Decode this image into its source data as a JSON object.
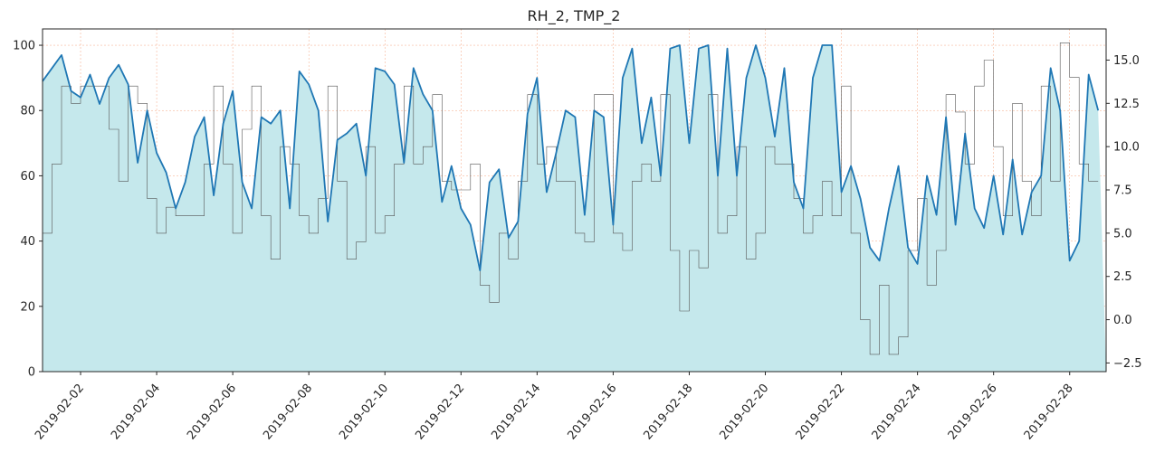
{
  "chart_data": {
    "type": "line",
    "title": "RH_2, TMP_2",
    "x_start": "2019-02-01",
    "x_end": "2019-02-28",
    "x_tick_labels": [
      "2019-02-02",
      "2019-02-04",
      "2019-02-06",
      "2019-02-08",
      "2019-02-10",
      "2019-02-12",
      "2019-02-14",
      "2019-02-16",
      "2019-02-18",
      "2019-02-20",
      "2019-02-22",
      "2019-02-24",
      "2019-02-26",
      "2019-02-28"
    ],
    "ylim_left": [
      0,
      105
    ],
    "ylim_right": [
      -3,
      16.8
    ],
    "y_left_ticks": [
      "0",
      "20",
      "40",
      "60",
      "80",
      "100"
    ],
    "y_right_ticks": [
      "−2.5",
      "0.0",
      "2.5",
      "5.0",
      "7.5",
      "10.0",
      "12.5",
      "15.0"
    ],
    "grid": true,
    "colors": {
      "rh_line": "#1f77b4",
      "rh_fill": "#c5e8ec",
      "tmp_line": "#555555",
      "grid": "#f4a582"
    },
    "series": [
      {
        "name": "RH_2",
        "axis": "left",
        "style": "line-with-area",
        "points": [
          [
            "2019-02-01 00:00",
            89
          ],
          [
            "2019-02-01 06:00",
            93
          ],
          [
            "2019-02-01 12:00",
            97
          ],
          [
            "2019-02-01 18:00",
            86
          ],
          [
            "2019-02-02 00:00",
            84
          ],
          [
            "2019-02-02 06:00",
            91
          ],
          [
            "2019-02-02 12:00",
            82
          ],
          [
            "2019-02-02 18:00",
            90
          ],
          [
            "2019-02-03 00:00",
            94
          ],
          [
            "2019-02-03 06:00",
            88
          ],
          [
            "2019-02-03 12:00",
            64
          ],
          [
            "2019-02-03 18:00",
            80
          ],
          [
            "2019-02-04 00:00",
            67
          ],
          [
            "2019-02-04 06:00",
            61
          ],
          [
            "2019-02-04 12:00",
            50
          ],
          [
            "2019-02-04 18:00",
            58
          ],
          [
            "2019-02-05 00:00",
            72
          ],
          [
            "2019-02-05 06:00",
            78
          ],
          [
            "2019-02-05 12:00",
            54
          ],
          [
            "2019-02-05 18:00",
            76
          ],
          [
            "2019-02-06 00:00",
            86
          ],
          [
            "2019-02-06 06:00",
            58
          ],
          [
            "2019-02-06 12:00",
            50
          ],
          [
            "2019-02-06 18:00",
            78
          ],
          [
            "2019-02-07 00:00",
            76
          ],
          [
            "2019-02-07 06:00",
            80
          ],
          [
            "2019-02-07 12:00",
            50
          ],
          [
            "2019-02-07 18:00",
            92
          ],
          [
            "2019-02-08 00:00",
            88
          ],
          [
            "2019-02-08 06:00",
            80
          ],
          [
            "2019-02-08 12:00",
            46
          ],
          [
            "2019-02-08 18:00",
            71
          ],
          [
            "2019-02-09 00:00",
            73
          ],
          [
            "2019-02-09 06:00",
            76
          ],
          [
            "2019-02-09 12:00",
            60
          ],
          [
            "2019-02-09 18:00",
            93
          ],
          [
            "2019-02-10 00:00",
            92
          ],
          [
            "2019-02-10 06:00",
            88
          ],
          [
            "2019-02-10 12:00",
            64
          ],
          [
            "2019-02-10 18:00",
            93
          ],
          [
            "2019-02-11 00:00",
            85
          ],
          [
            "2019-02-11 06:00",
            80
          ],
          [
            "2019-02-11 12:00",
            52
          ],
          [
            "2019-02-11 18:00",
            63
          ],
          [
            "2019-02-12 00:00",
            50
          ],
          [
            "2019-02-12 06:00",
            45
          ],
          [
            "2019-02-12 12:00",
            31
          ],
          [
            "2019-02-12 18:00",
            58
          ],
          [
            "2019-02-13 00:00",
            62
          ],
          [
            "2019-02-13 06:00",
            41
          ],
          [
            "2019-02-13 12:00",
            46
          ],
          [
            "2019-02-13 18:00",
            79
          ],
          [
            "2019-02-14 00:00",
            90
          ],
          [
            "2019-02-14 06:00",
            55
          ],
          [
            "2019-02-14 12:00",
            67
          ],
          [
            "2019-02-14 18:00",
            80
          ],
          [
            "2019-02-15 00:00",
            78
          ],
          [
            "2019-02-15 06:00",
            48
          ],
          [
            "2019-02-15 12:00",
            80
          ],
          [
            "2019-02-15 18:00",
            78
          ],
          [
            "2019-02-16 00:00",
            45
          ],
          [
            "2019-02-16 06:00",
            90
          ],
          [
            "2019-02-16 12:00",
            99
          ],
          [
            "2019-02-16 18:00",
            70
          ],
          [
            "2019-02-17 00:00",
            84
          ],
          [
            "2019-02-17 06:00",
            60
          ],
          [
            "2019-02-17 12:00",
            99
          ],
          [
            "2019-02-17 18:00",
            100
          ],
          [
            "2019-02-18 00:00",
            70
          ],
          [
            "2019-02-18 06:00",
            99
          ],
          [
            "2019-02-18 12:00",
            100
          ],
          [
            "2019-02-18 18:00",
            60
          ],
          [
            "2019-02-19 00:00",
            99
          ],
          [
            "2019-02-19 06:00",
            60
          ],
          [
            "2019-02-19 12:00",
            90
          ],
          [
            "2019-02-19 18:00",
            100
          ],
          [
            "2019-02-20 00:00",
            90
          ],
          [
            "2019-02-20 06:00",
            72
          ],
          [
            "2019-02-20 12:00",
            93
          ],
          [
            "2019-02-20 18:00",
            58
          ],
          [
            "2019-02-21 00:00",
            50
          ],
          [
            "2019-02-21 06:00",
            90
          ],
          [
            "2019-02-21 12:00",
            100
          ],
          [
            "2019-02-21 18:00",
            100
          ],
          [
            "2019-02-22 00:00",
            55
          ],
          [
            "2019-02-22 06:00",
            63
          ],
          [
            "2019-02-22 12:00",
            53
          ],
          [
            "2019-02-22 18:00",
            38
          ],
          [
            "2019-02-23 00:00",
            34
          ],
          [
            "2019-02-23 06:00",
            50
          ],
          [
            "2019-02-23 12:00",
            63
          ],
          [
            "2019-02-23 18:00",
            38
          ],
          [
            "2019-02-24 00:00",
            33
          ],
          [
            "2019-02-24 06:00",
            60
          ],
          [
            "2019-02-24 12:00",
            48
          ],
          [
            "2019-02-24 18:00",
            78
          ],
          [
            "2019-02-25 00:00",
            45
          ],
          [
            "2019-02-25 06:00",
            73
          ],
          [
            "2019-02-25 12:00",
            50
          ],
          [
            "2019-02-25 18:00",
            44
          ],
          [
            "2019-02-26 00:00",
            60
          ],
          [
            "2019-02-26 06:00",
            42
          ],
          [
            "2019-02-26 12:00",
            65
          ],
          [
            "2019-02-26 18:00",
            42
          ],
          [
            "2019-02-27 00:00",
            55
          ],
          [
            "2019-02-27 06:00",
            60
          ],
          [
            "2019-02-27 12:00",
            93
          ],
          [
            "2019-02-27 18:00",
            80
          ],
          [
            "2019-02-28 00:00",
            34
          ],
          [
            "2019-02-28 06:00",
            40
          ],
          [
            "2019-02-28 12:00",
            91
          ],
          [
            "2019-02-28 18:00",
            80
          ]
        ]
      },
      {
        "name": "TMP_2",
        "axis": "right",
        "style": "thin-step-line",
        "points": [
          [
            "2019-02-01 00:00",
            5
          ],
          [
            "2019-02-01 06:00",
            9
          ],
          [
            "2019-02-01 12:00",
            13.5
          ],
          [
            "2019-02-01 18:00",
            12.5
          ],
          [
            "2019-02-02 00:00",
            13.5
          ],
          [
            "2019-02-02 06:00",
            13.5
          ],
          [
            "2019-02-02 12:00",
            13.5
          ],
          [
            "2019-02-02 18:00",
            11
          ],
          [
            "2019-02-03 00:00",
            8
          ],
          [
            "2019-02-03 06:00",
            13.5
          ],
          [
            "2019-02-03 12:00",
            12.5
          ],
          [
            "2019-02-03 18:00",
            7
          ],
          [
            "2019-02-04 00:00",
            5
          ],
          [
            "2019-02-04 06:00",
            6.5
          ],
          [
            "2019-02-04 12:00",
            6
          ],
          [
            "2019-02-04 18:00",
            6
          ],
          [
            "2019-02-05 00:00",
            6
          ],
          [
            "2019-02-05 06:00",
            9
          ],
          [
            "2019-02-05 12:00",
            13.5
          ],
          [
            "2019-02-05 18:00",
            9
          ],
          [
            "2019-02-06 00:00",
            5
          ],
          [
            "2019-02-06 06:00",
            11
          ],
          [
            "2019-02-06 12:00",
            13.5
          ],
          [
            "2019-02-06 18:00",
            6
          ],
          [
            "2019-02-07 00:00",
            3.5
          ],
          [
            "2019-02-07 06:00",
            10
          ],
          [
            "2019-02-07 12:00",
            9
          ],
          [
            "2019-02-07 18:00",
            6
          ],
          [
            "2019-02-08 00:00",
            5
          ],
          [
            "2019-02-08 06:00",
            7
          ],
          [
            "2019-02-08 12:00",
            13.5
          ],
          [
            "2019-02-08 18:00",
            8
          ],
          [
            "2019-02-09 00:00",
            3.5
          ],
          [
            "2019-02-09 06:00",
            4.5
          ],
          [
            "2019-02-09 12:00",
            10
          ],
          [
            "2019-02-09 18:00",
            5
          ],
          [
            "2019-02-10 00:00",
            6
          ],
          [
            "2019-02-10 06:00",
            9
          ],
          [
            "2019-02-10 12:00",
            13.5
          ],
          [
            "2019-02-10 18:00",
            9
          ],
          [
            "2019-02-11 00:00",
            10
          ],
          [
            "2019-02-11 06:00",
            13
          ],
          [
            "2019-02-11 12:00",
            8
          ],
          [
            "2019-02-11 18:00",
            7.5
          ],
          [
            "2019-02-12 00:00",
            7.5
          ],
          [
            "2019-02-12 06:00",
            9
          ],
          [
            "2019-02-12 12:00",
            2
          ],
          [
            "2019-02-12 18:00",
            1
          ],
          [
            "2019-02-13 00:00",
            5
          ],
          [
            "2019-02-13 06:00",
            3.5
          ],
          [
            "2019-02-13 12:00",
            8
          ],
          [
            "2019-02-13 18:00",
            13
          ],
          [
            "2019-02-14 00:00",
            9
          ],
          [
            "2019-02-14 06:00",
            10
          ],
          [
            "2019-02-14 12:00",
            8
          ],
          [
            "2019-02-14 18:00",
            8
          ],
          [
            "2019-02-15 00:00",
            5
          ],
          [
            "2019-02-15 06:00",
            4.5
          ],
          [
            "2019-02-15 12:00",
            13
          ],
          [
            "2019-02-15 18:00",
            13
          ],
          [
            "2019-02-16 00:00",
            5
          ],
          [
            "2019-02-16 06:00",
            4
          ],
          [
            "2019-02-16 12:00",
            8
          ],
          [
            "2019-02-16 18:00",
            9
          ],
          [
            "2019-02-17 00:00",
            8
          ],
          [
            "2019-02-17 06:00",
            13
          ],
          [
            "2019-02-17 12:00",
            4
          ],
          [
            "2019-02-17 18:00",
            0.5
          ],
          [
            "2019-02-18 00:00",
            4
          ],
          [
            "2019-02-18 06:00",
            3
          ],
          [
            "2019-02-18 12:00",
            13
          ],
          [
            "2019-02-18 18:00",
            5
          ],
          [
            "2019-02-19 00:00",
            6
          ],
          [
            "2019-02-19 06:00",
            10
          ],
          [
            "2019-02-19 12:00",
            3.5
          ],
          [
            "2019-02-19 18:00",
            5
          ],
          [
            "2019-02-20 00:00",
            10
          ],
          [
            "2019-02-20 06:00",
            9
          ],
          [
            "2019-02-20 12:00",
            9
          ],
          [
            "2019-02-20 18:00",
            7
          ],
          [
            "2019-02-21 00:00",
            5
          ],
          [
            "2019-02-21 06:00",
            6
          ],
          [
            "2019-02-21 12:00",
            8
          ],
          [
            "2019-02-21 18:00",
            6
          ],
          [
            "2019-02-22 00:00",
            13.5
          ],
          [
            "2019-02-22 06:00",
            5
          ],
          [
            "2019-02-22 12:00",
            0
          ],
          [
            "2019-02-22 18:00",
            -2
          ],
          [
            "2019-02-23 00:00",
            2
          ],
          [
            "2019-02-23 06:00",
            -2
          ],
          [
            "2019-02-23 12:00",
            -1
          ],
          [
            "2019-02-23 18:00",
            4
          ],
          [
            "2019-02-24 00:00",
            7
          ],
          [
            "2019-02-24 06:00",
            2
          ],
          [
            "2019-02-24 12:00",
            4
          ],
          [
            "2019-02-24 18:00",
            13
          ],
          [
            "2019-02-25 00:00",
            12
          ],
          [
            "2019-02-25 06:00",
            9
          ],
          [
            "2019-02-25 12:00",
            13.5
          ],
          [
            "2019-02-25 18:00",
            15
          ],
          [
            "2019-02-26 00:00",
            10
          ],
          [
            "2019-02-26 06:00",
            6
          ],
          [
            "2019-02-26 12:00",
            12.5
          ],
          [
            "2019-02-26 18:00",
            8
          ],
          [
            "2019-02-27 00:00",
            6
          ],
          [
            "2019-02-27 06:00",
            13.5
          ],
          [
            "2019-02-27 12:00",
            8
          ],
          [
            "2019-02-27 18:00",
            16
          ],
          [
            "2019-02-28 00:00",
            14
          ],
          [
            "2019-02-28 06:00",
            9
          ],
          [
            "2019-02-28 12:00",
            8
          ],
          [
            "2019-02-28 18:00",
            8
          ]
        ]
      }
    ]
  }
}
